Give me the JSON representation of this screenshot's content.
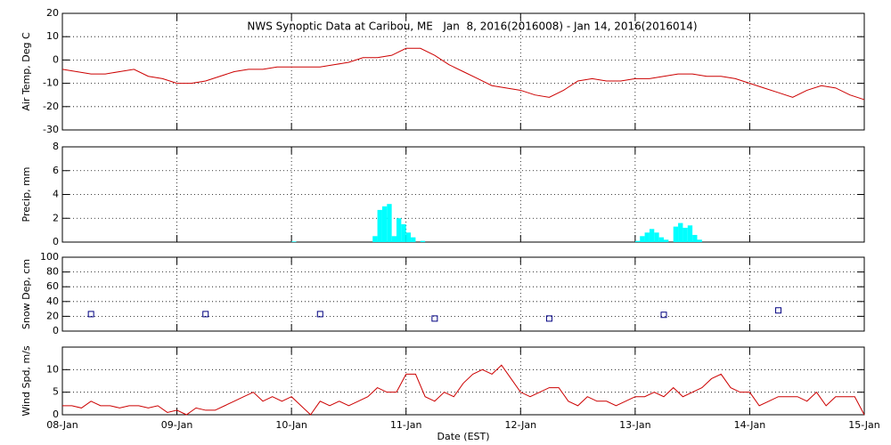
{
  "chart_data": [
    {
      "type": "line",
      "title": "NWS Synoptic Data at Caribou, ME   Jan  8, 2016(2016008) - Jan 14, 2016(2016014)",
      "ylabel": "Air Temp, Deg C",
      "color": "#cc0000",
      "xlim": [
        0,
        168
      ],
      "xticks": [
        0,
        24,
        48,
        72,
        96,
        120,
        144,
        168
      ],
      "ylim": [
        -30,
        20
      ],
      "yticks": [
        -30,
        -20,
        -10,
        0,
        10,
        20
      ],
      "grid": true,
      "x": [
        0,
        3,
        6,
        9,
        12,
        15,
        18,
        21,
        24,
        27,
        30,
        33,
        36,
        39,
        42,
        45,
        48,
        51,
        54,
        57,
        60,
        63,
        66,
        69,
        72,
        75,
        78,
        81,
        84,
        87,
        90,
        93,
        96,
        99,
        102,
        105,
        108,
        111,
        114,
        117,
        120,
        123,
        126,
        129,
        132,
        135,
        138,
        141,
        144,
        147,
        150,
        153,
        156,
        159,
        162,
        165,
        168
      ],
      "values": [
        -4,
        -5,
        -6,
        -6,
        -5,
        -4,
        -7,
        -8,
        -10,
        -10,
        -9,
        -7,
        -5,
        -4,
        -4,
        -3,
        -3,
        -3,
        -3,
        -2,
        -1,
        1,
        1,
        2,
        5,
        5,
        2,
        -2,
        -5,
        -8,
        -11,
        -12,
        -13,
        -15,
        -16,
        -13,
        -9,
        -8,
        -9,
        -9,
        -8,
        -8,
        -7,
        -6,
        -6,
        -7,
        -7,
        -8,
        -10,
        -12,
        -14,
        -16,
        -13,
        -11,
        -12,
        -15,
        -17
      ]
    },
    {
      "type": "bar",
      "ylabel": "Precip, mm",
      "color": "#00ffff",
      "xlim": [
        0,
        168
      ],
      "xticks": [
        0,
        24,
        48,
        72,
        96,
        120,
        144,
        168
      ],
      "ylim": [
        0,
        8
      ],
      "yticks": [
        0,
        2,
        4,
        6,
        8
      ],
      "grid": true,
      "x": [
        48,
        65,
        66,
        67,
        68,
        69,
        70,
        71,
        72,
        73,
        75,
        120,
        121,
        122,
        123,
        124,
        125,
        126,
        128,
        129,
        130,
        131,
        132,
        133
      ],
      "values": [
        0.05,
        0.5,
        2.7,
        3.0,
        3.2,
        0.5,
        2.0,
        1.5,
        0.8,
        0.4,
        0.1,
        0.1,
        0.5,
        0.8,
        1.1,
        0.8,
        0.4,
        0.2,
        1.3,
        1.6,
        1.2,
        1.4,
        0.6,
        0.2
      ]
    },
    {
      "type": "scatter",
      "ylabel": "Snow Dep, cm",
      "color": "#000080",
      "xlim": [
        0,
        168
      ],
      "xticks": [
        0,
        24,
        48,
        72,
        96,
        120,
        144,
        168
      ],
      "ylim": [
        0,
        100
      ],
      "yticks": [
        0,
        20,
        40,
        60,
        80,
        100
      ],
      "grid": true,
      "x": [
        6,
        30,
        54,
        78,
        102,
        126,
        150
      ],
      "values": [
        23,
        23,
        23,
        17,
        17,
        22,
        28
      ]
    },
    {
      "type": "line",
      "ylabel": "Wind Spd, m/s",
      "xlabel": "Date (EST)",
      "color": "#cc0000",
      "xlim": [
        0,
        168
      ],
      "xticks": [
        {
          "value": 0,
          "label": "08-Jan"
        },
        {
          "value": 24,
          "label": "09-Jan"
        },
        {
          "value": 48,
          "label": "10-Jan"
        },
        {
          "value": 72,
          "label": "11-Jan"
        },
        {
          "value": 96,
          "label": "12-Jan"
        },
        {
          "value": 120,
          "label": "13-Jan"
        },
        {
          "value": 144,
          "label": "14-Jan"
        },
        {
          "value": 168,
          "label": "15-Jan"
        }
      ],
      "ylim": [
        0,
        15
      ],
      "yticks": [
        0,
        5,
        10
      ],
      "grid": true,
      "x": [
        0,
        2,
        4,
        6,
        8,
        10,
        12,
        14,
        16,
        18,
        20,
        22,
        24,
        26,
        28,
        30,
        32,
        34,
        36,
        38,
        40,
        42,
        44,
        46,
        48,
        50,
        52,
        54,
        56,
        58,
        60,
        62,
        64,
        66,
        68,
        70,
        72,
        74,
        76,
        78,
        80,
        82,
        84,
        86,
        88,
        90,
        92,
        94,
        96,
        98,
        100,
        102,
        104,
        106,
        108,
        110,
        112,
        114,
        116,
        118,
        120,
        122,
        124,
        126,
        128,
        130,
        132,
        134,
        136,
        138,
        140,
        142,
        144,
        146,
        148,
        150,
        152,
        154,
        156,
        158,
        160,
        162,
        164,
        166,
        168
      ],
      "values": [
        2,
        2,
        1.5,
        3,
        2,
        2,
        1.5,
        2,
        2,
        1.5,
        2,
        0.5,
        1,
        0,
        1.5,
        1,
        1,
        2,
        3,
        4,
        5,
        3,
        4,
        3,
        4,
        2,
        0,
        3,
        2,
        3,
        2,
        3,
        4,
        6,
        5,
        5,
        9,
        9,
        4,
        3,
        5,
        4,
        7,
        9,
        10,
        9,
        11,
        8,
        5,
        4,
        5,
        6,
        6,
        3,
        2,
        4,
        3,
        3,
        2,
        3,
        4,
        4,
        5,
        4,
        6,
        4,
        5,
        6,
        8,
        9,
        6,
        5,
        5,
        2,
        3,
        4,
        4,
        4,
        3,
        5,
        2,
        4,
        4,
        4,
        0
      ]
    }
  ]
}
